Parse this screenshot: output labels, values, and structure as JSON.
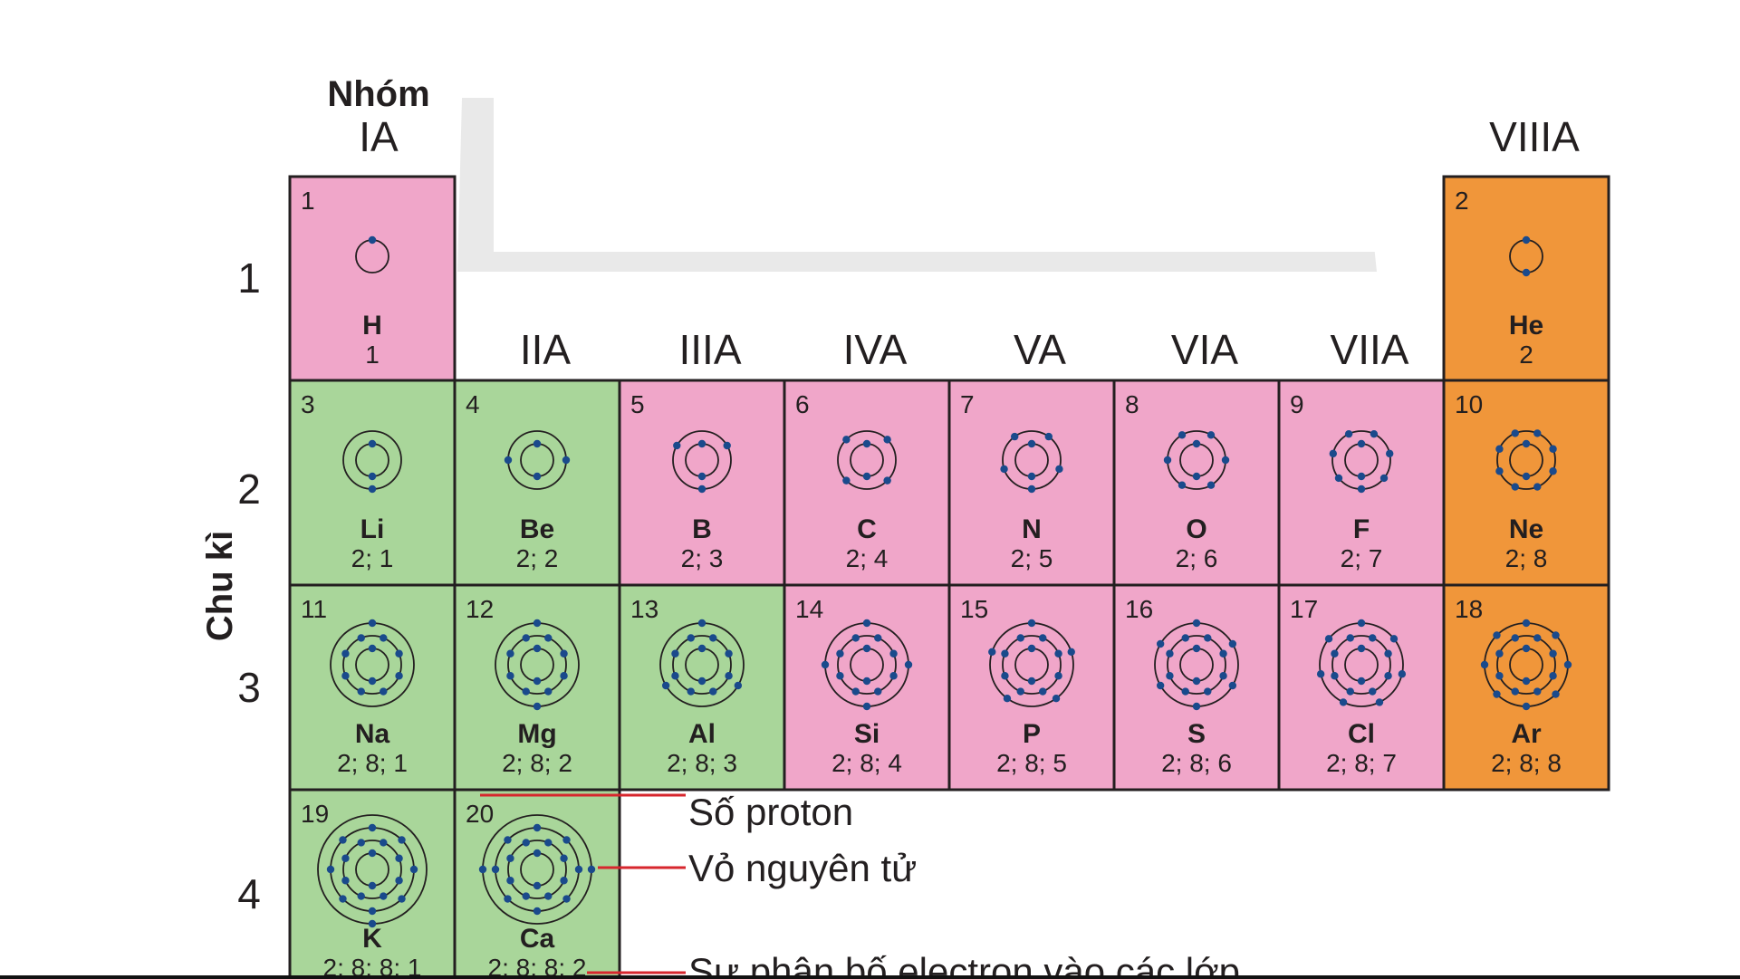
{
  "header": {
    "group_title": "Nhóm",
    "period_title": "Chu kì"
  },
  "groups": [
    "IA",
    "IIA",
    "IIIA",
    "IVA",
    "VA",
    "VIA",
    "VIIA",
    "VIIIA"
  ],
  "periods": [
    "1",
    "2",
    "3",
    "4"
  ],
  "colors": {
    "s_block": "#a9d69a",
    "p_block": "#f0a6c9",
    "noble": "#f0963a",
    "hydrogen": "#f0a6c9",
    "electron": "#1a4a8c",
    "shell": "#231f20",
    "pointer": "#d7262d"
  },
  "elements": [
    {
      "z": 1,
      "number": "1",
      "symbol": "H",
      "config": "1",
      "shells": [
        1
      ],
      "period": 1,
      "group": 1,
      "block": "hydrogen"
    },
    {
      "z": 2,
      "number": "2",
      "symbol": "He",
      "config": "2",
      "shells": [
        2
      ],
      "period": 1,
      "group": 8,
      "block": "noble"
    },
    {
      "z": 3,
      "number": "3",
      "symbol": "Li",
      "config": "2; 1",
      "shells": [
        2,
        1
      ],
      "period": 2,
      "group": 1,
      "block": "s_block"
    },
    {
      "z": 4,
      "number": "4",
      "symbol": "Be",
      "config": "2; 2",
      "shells": [
        2,
        2
      ],
      "period": 2,
      "group": 2,
      "block": "s_block"
    },
    {
      "z": 5,
      "number": "5",
      "symbol": "B",
      "config": "2; 3",
      "shells": [
        2,
        3
      ],
      "period": 2,
      "group": 3,
      "block": "p_block"
    },
    {
      "z": 6,
      "number": "6",
      "symbol": "C",
      "config": "2; 4",
      "shells": [
        2,
        4
      ],
      "period": 2,
      "group": 4,
      "block": "p_block"
    },
    {
      "z": 7,
      "number": "7",
      "symbol": "N",
      "config": "2; 5",
      "shells": [
        2,
        5
      ],
      "period": 2,
      "group": 5,
      "block": "p_block"
    },
    {
      "z": 8,
      "number": "8",
      "symbol": "O",
      "config": "2; 6",
      "shells": [
        2,
        6
      ],
      "period": 2,
      "group": 6,
      "block": "p_block"
    },
    {
      "z": 9,
      "number": "9",
      "symbol": "F",
      "config": "2; 7",
      "shells": [
        2,
        7
      ],
      "period": 2,
      "group": 7,
      "block": "p_block"
    },
    {
      "z": 10,
      "number": "10",
      "symbol": "Ne",
      "config": "2; 8",
      "shells": [
        2,
        8
      ],
      "period": 2,
      "group": 8,
      "block": "noble"
    },
    {
      "z": 11,
      "number": "11",
      "symbol": "Na",
      "config": "2; 8; 1",
      "shells": [
        2,
        8,
        1
      ],
      "period": 3,
      "group": 1,
      "block": "s_block"
    },
    {
      "z": 12,
      "number": "12",
      "symbol": "Mg",
      "config": "2; 8; 2",
      "shells": [
        2,
        8,
        2
      ],
      "period": 3,
      "group": 2,
      "block": "s_block"
    },
    {
      "z": 13,
      "number": "13",
      "symbol": "Al",
      "config": "2; 8; 3",
      "shells": [
        2,
        8,
        3
      ],
      "period": 3,
      "group": 3,
      "block": "s_block"
    },
    {
      "z": 14,
      "number": "14",
      "symbol": "Si",
      "config": "2; 8; 4",
      "shells": [
        2,
        8,
        4
      ],
      "period": 3,
      "group": 4,
      "block": "p_block"
    },
    {
      "z": 15,
      "number": "15",
      "symbol": "P",
      "config": "2; 8; 5",
      "shells": [
        2,
        8,
        5
      ],
      "period": 3,
      "group": 5,
      "block": "p_block"
    },
    {
      "z": 16,
      "number": "16",
      "symbol": "S",
      "config": "2; 8; 6",
      "shells": [
        2,
        8,
        6
      ],
      "period": 3,
      "group": 6,
      "block": "p_block"
    },
    {
      "z": 17,
      "number": "17",
      "symbol": "Cl",
      "config": "2; 8; 7",
      "shells": [
        2,
        8,
        7
      ],
      "period": 3,
      "group": 7,
      "block": "p_block"
    },
    {
      "z": 18,
      "number": "18",
      "symbol": "Ar",
      "config": "2; 8; 8",
      "shells": [
        2,
        8,
        8
      ],
      "period": 3,
      "group": 8,
      "block": "noble"
    },
    {
      "z": 19,
      "number": "19",
      "symbol": "K",
      "config": "2; 8; 8; 1",
      "shells": [
        2,
        8,
        8,
        1
      ],
      "period": 4,
      "group": 1,
      "block": "s_block"
    },
    {
      "z": 20,
      "number": "20",
      "symbol": "Ca",
      "config": "2; 8; 8; 2",
      "shells": [
        2,
        8,
        8,
        2
      ],
      "period": 4,
      "group": 2,
      "block": "s_block"
    }
  ],
  "legend": {
    "proton": "Số proton",
    "shell": "Vỏ nguyên tử",
    "distribution": "Sự phân bố electron vào các lớp"
  }
}
